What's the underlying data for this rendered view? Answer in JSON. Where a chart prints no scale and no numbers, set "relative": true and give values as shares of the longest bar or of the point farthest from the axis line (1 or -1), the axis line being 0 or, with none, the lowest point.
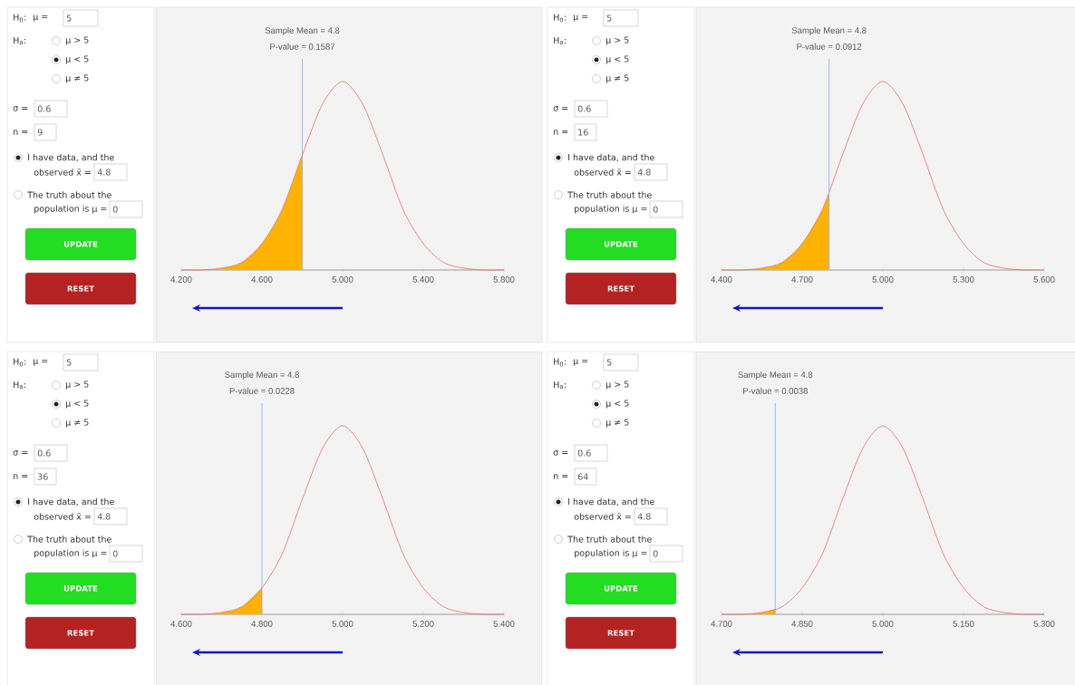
{
  "chart_data": [
    {
      "type": "other",
      "annotations": [
        "H$_{0}$:",
        "μ =",
        "5",
        "H$_{a}$:",
        "μ > 5",
        "μ < 5",
        "μ ≠ 5",
        "σ =",
        "0.6",
        "n =",
        "9",
        "I have data, and the",
        "observed x̄ =",
        "4.8",
        "The truth about the",
        "population is μ =",
        "0",
        "UPDATE",
        "RESET"
      ]
    },
    {
      "type": "line",
      "relative": true,
      "title": "Sample Mean = 4.8",
      "subtitle": "P-value = 0.1587",
      "xlim": [
        4.2,
        5.8
      ],
      "xticks": [
        {
          "value": 4.2,
          "label": "4.200"
        },
        {
          "value": 4.6,
          "label": "4.600"
        },
        {
          "value": 5.0,
          "label": "5.000"
        },
        {
          "value": 5.4,
          "label": "5.400"
        },
        {
          "value": 5.8,
          "label": "5.800"
        }
      ],
      "ref_lines": [
        {
          "axis": "x",
          "value": 4.8,
          "color": "#8fa8ee"
        }
      ],
      "series": [
        {
          "type": "area",
          "color": "#ffb300",
          "x": [
            4.2,
            4.3,
            4.4,
            4.5,
            4.6,
            4.7,
            4.8
          ],
          "values": [
            0,
            0,
            0.01,
            0.04,
            0.14,
            0.32,
            0.61
          ]
        },
        {
          "type": "line",
          "color": "#e07070",
          "x": [
            4.2,
            4.3,
            4.4,
            4.5,
            4.6,
            4.7,
            4.8,
            4.9,
            5.0,
            5.1,
            5.2,
            5.3,
            5.4,
            5.5,
            5.6,
            5.7,
            5.8
          ],
          "values": [
            0,
            0,
            0.01,
            0.04,
            0.14,
            0.32,
            0.61,
            0.88,
            1,
            0.88,
            0.61,
            0.32,
            0.14,
            0.04,
            0.01,
            0,
            0
          ]
        }
      ]
    },
    {
      "type": "other",
      "annotations": [
        "H$_{0}$:",
        "μ =",
        "5",
        "H$_{a}$:",
        "μ > 5",
        "μ < 5",
        "μ ≠ 5",
        "σ =",
        "0.6",
        "n =",
        "16",
        "I have data, and the",
        "observed x̄ =",
        "4.8",
        "The truth about the",
        "population is μ =",
        "0",
        "UPDATE",
        "RESET"
      ]
    },
    {
      "type": "line",
      "relative": true,
      "title": "Sample Mean = 4.8",
      "subtitle": "P-value = 0.0912",
      "xlim": [
        4.4,
        5.6
      ],
      "xticks": [
        {
          "value": 4.4,
          "label": "4.400"
        },
        {
          "value": 4.7,
          "label": "4.700"
        },
        {
          "value": 5.0,
          "label": "5.000"
        },
        {
          "value": 5.3,
          "label": "5.300"
        },
        {
          "value": 5.6,
          "label": "5.600"
        }
      ],
      "ref_lines": [
        {
          "axis": "x",
          "value": 4.8,
          "color": "#8fa8ee"
        }
      ],
      "series": [
        {
          "type": "area",
          "color": "#ffb300",
          "x": [
            4.4,
            4.475,
            4.55,
            4.625,
            4.7,
            4.775,
            4.8
          ],
          "values": [
            0,
            0,
            0.01,
            0.04,
            0.14,
            0.32,
            0.41
          ]
        },
        {
          "type": "line",
          "color": "#e07070",
          "x": [
            4.4,
            4.475,
            4.55,
            4.625,
            4.7,
            4.775,
            4.85,
            4.925,
            5.0,
            5.075,
            5.15,
            5.225,
            5.3,
            5.375,
            5.45,
            5.525,
            5.6
          ],
          "values": [
            0,
            0,
            0.01,
            0.04,
            0.14,
            0.32,
            0.61,
            0.88,
            1,
            0.88,
            0.61,
            0.32,
            0.14,
            0.04,
            0.01,
            0,
            0
          ]
        }
      ]
    },
    {
      "type": "other",
      "annotations": [
        "H$_{0}$:",
        "μ =",
        "5",
        "H$_{a}$:",
        "μ > 5",
        "μ < 5",
        "μ ≠ 5",
        "σ =",
        "0.6",
        "n =",
        "36",
        "I have data, and the",
        "observed x̄ =",
        "4.8",
        "The truth about the",
        "population is μ =",
        "0",
        "UPDATE",
        "RESET"
      ]
    },
    {
      "type": "line",
      "relative": true,
      "title": "Sample Mean = 4.8",
      "subtitle": "P-value = 0.0228",
      "xlim": [
        4.6,
        5.4
      ],
      "xticks": [
        {
          "value": 4.6,
          "label": "4.600"
        },
        {
          "value": 4.8,
          "label": "4.800"
        },
        {
          "value": 5.0,
          "label": "5.000"
        },
        {
          "value": 5.2,
          "label": "5.200"
        },
        {
          "value": 5.4,
          "label": "5.400"
        }
      ],
      "ref_lines": [
        {
          "axis": "x",
          "value": 4.8,
          "color": "#8fa8ee"
        }
      ],
      "series": [
        {
          "type": "area",
          "color": "#ffb300",
          "x": [
            4.6,
            4.65,
            4.7,
            4.75,
            4.8
          ],
          "values": [
            0,
            0,
            0.01,
            0.04,
            0.14
          ]
        },
        {
          "type": "line",
          "color": "#e07070",
          "x": [
            4.6,
            4.65,
            4.7,
            4.75,
            4.8,
            4.85,
            4.9,
            4.95,
            5.0,
            5.05,
            5.1,
            5.15,
            5.2,
            5.25,
            5.3,
            5.35,
            5.4
          ],
          "values": [
            0,
            0,
            0.01,
            0.04,
            0.14,
            0.32,
            0.61,
            0.88,
            1,
            0.88,
            0.61,
            0.32,
            0.14,
            0.04,
            0.01,
            0,
            0
          ]
        }
      ]
    },
    {
      "type": "other",
      "annotations": [
        "H$_{0}$:",
        "μ =",
        "5",
        "H$_{a}$:",
        "μ > 5",
        "μ < 5",
        "μ ≠ 5",
        "σ =",
        "0.6",
        "n =",
        "64",
        "I have data, and the",
        "observed x̄ =",
        "4.8",
        "The truth about the",
        "population is μ =",
        "0",
        "UPDATE",
        "RESET"
      ]
    },
    {
      "type": "line",
      "relative": true,
      "title": "Sample Mean = 4.8",
      "subtitle": "P-value = 0.0038",
      "xlim": [
        4.7,
        5.3
      ],
      "xticks": [
        {
          "value": 4.7,
          "label": "4.700"
        },
        {
          "value": 4.85,
          "label": "4.850"
        },
        {
          "value": 5.0,
          "label": "5.000"
        },
        {
          "value": 5.15,
          "label": "5.150"
        },
        {
          "value": 5.3,
          "label": "5.300"
        }
      ],
      "ref_lines": [
        {
          "axis": "x",
          "value": 4.8,
          "color": "#8fa8ee"
        }
      ],
      "series": [
        {
          "type": "area",
          "color": "#ffb300",
          "x": [
            4.7,
            4.7375,
            4.775,
            4.8
          ],
          "values": [
            0,
            0,
            0.01,
            0.03
          ]
        },
        {
          "type": "line",
          "color": "#e07070",
          "x": [
            4.7,
            4.7375,
            4.775,
            4.8125,
            4.85,
            4.8875,
            4.925,
            4.9625,
            5.0,
            5.0375,
            5.075,
            5.1125,
            5.15,
            5.1875,
            5.225,
            5.2625,
            5.3
          ],
          "values": [
            0,
            0,
            0.01,
            0.04,
            0.14,
            0.32,
            0.61,
            0.88,
            1,
            0.88,
            0.61,
            0.32,
            0.14,
            0.04,
            0.01,
            0,
            0
          ]
        }
      ]
    }
  ]
}
